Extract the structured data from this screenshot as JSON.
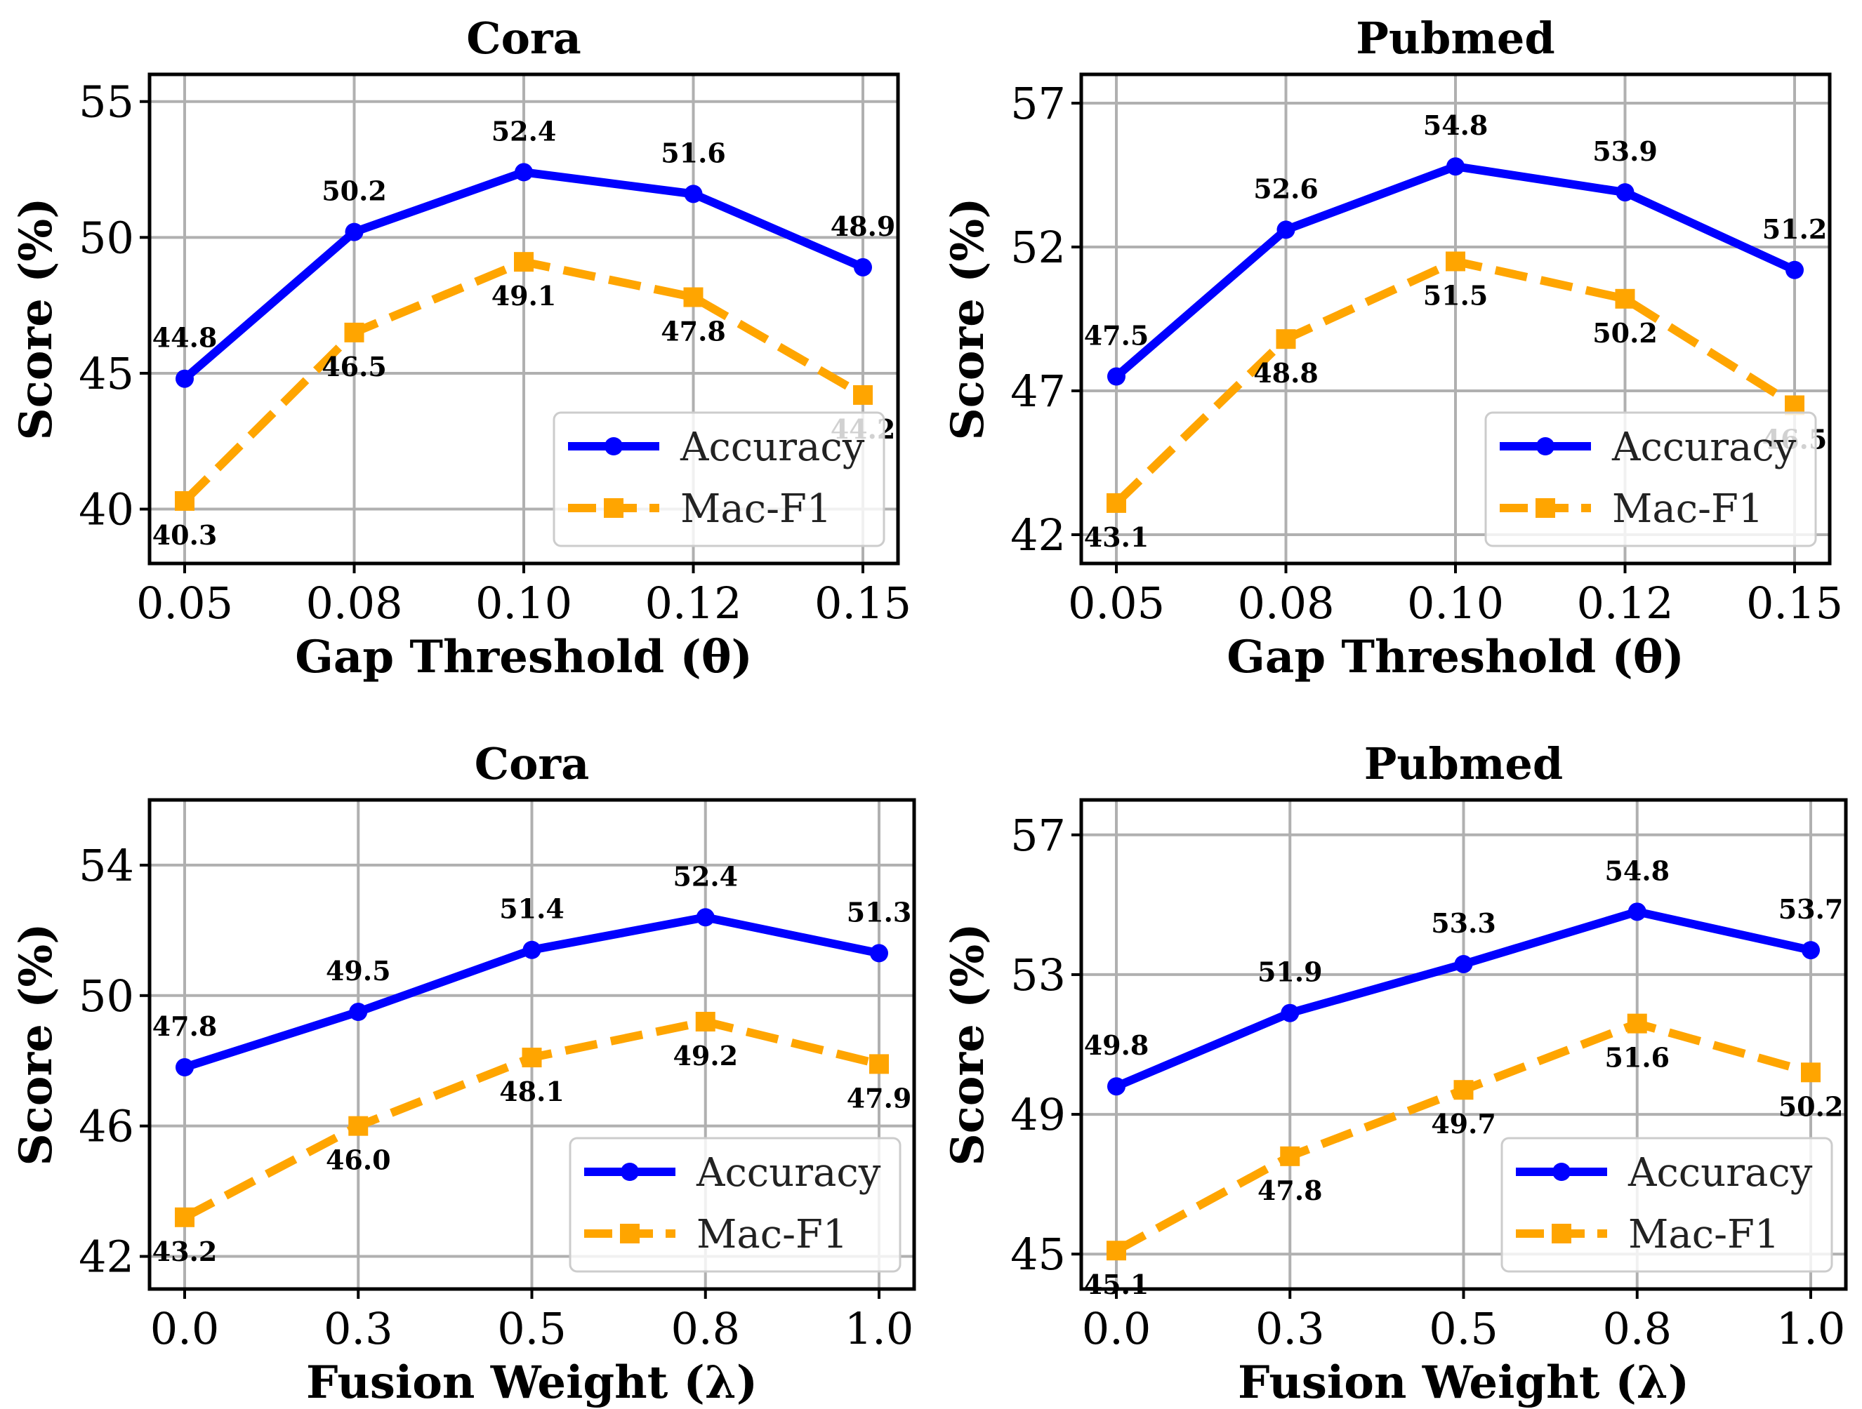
{
  "chart_data": [
    {
      "type": "line",
      "title": "Cora",
      "xlabel": "Gap Threshold (θ)",
      "ylabel": "Score (%)",
      "categories": [
        "0.05",
        "0.08",
        "0.10",
        "0.12",
        "0.15"
      ],
      "ylim": [
        38,
        56
      ],
      "yticks": [
        40,
        45,
        50,
        55
      ],
      "grid": true,
      "legend_position": "lower-right",
      "series": [
        {
          "name": "Accuracy",
          "color": "#0000ff",
          "marker": "circle",
          "style": "solid",
          "values": [
            44.8,
            50.2,
            52.4,
            51.6,
            48.9
          ],
          "labels": [
            "44.8",
            "50.2",
            "52.4",
            "51.6",
            "48.9"
          ]
        },
        {
          "name": "Mac-F1",
          "color": "#ffa500",
          "marker": "square",
          "style": "dashed",
          "values": [
            40.3,
            46.5,
            49.1,
            47.8,
            44.2
          ],
          "labels": [
            "40.3",
            "46.5",
            "49.1",
            "47.8",
            "44.2"
          ]
        }
      ]
    },
    {
      "type": "line",
      "title": "Pubmed",
      "xlabel": "Gap Threshold (θ)",
      "ylabel": "Score (%)",
      "categories": [
        "0.05",
        "0.08",
        "0.10",
        "0.12",
        "0.15"
      ],
      "ylim": [
        41,
        58
      ],
      "yticks": [
        42,
        47,
        52,
        57
      ],
      "grid": true,
      "legend_position": "lower-right",
      "series": [
        {
          "name": "Accuracy",
          "color": "#0000ff",
          "marker": "circle",
          "style": "solid",
          "values": [
            47.5,
            52.6,
            54.8,
            53.9,
            51.2
          ],
          "labels": [
            "47.5",
            "52.6",
            "54.8",
            "53.9",
            "51.2"
          ]
        },
        {
          "name": "Mac-F1",
          "color": "#ffa500",
          "marker": "square",
          "style": "dashed",
          "values": [
            43.1,
            48.8,
            51.5,
            50.2,
            46.5
          ],
          "labels": [
            "43.1",
            "48.8",
            "51.5",
            "50.2",
            "46.5"
          ]
        }
      ]
    },
    {
      "type": "line",
      "title": "Cora",
      "xlabel": "Fusion Weight (λ)",
      "ylabel": "Score (%)",
      "categories": [
        "0.0",
        "0.3",
        "0.5",
        "0.8",
        "1.0"
      ],
      "ylim": [
        41,
        56
      ],
      "yticks": [
        42,
        46,
        50,
        54
      ],
      "grid": true,
      "legend_position": "lower-right",
      "series": [
        {
          "name": "Accuracy",
          "color": "#0000ff",
          "marker": "circle",
          "style": "solid",
          "values": [
            47.8,
            49.5,
            51.4,
            52.4,
            51.3
          ],
          "labels": [
            "47.8",
            "49.5",
            "51.4",
            "52.4",
            "51.3"
          ]
        },
        {
          "name": "Mac-F1",
          "color": "#ffa500",
          "marker": "square",
          "style": "dashed",
          "values": [
            43.2,
            46.0,
            48.1,
            49.2,
            47.9
          ],
          "labels": [
            "43.2",
            "46.0",
            "48.1",
            "49.2",
            "47.9"
          ]
        }
      ]
    },
    {
      "type": "line",
      "title": "Pubmed",
      "xlabel": "Fusion Weight (λ)",
      "ylabel": "Score (%)",
      "categories": [
        "0.0",
        "0.3",
        "0.5",
        "0.8",
        "1.0"
      ],
      "ylim": [
        44,
        58
      ],
      "yticks": [
        45,
        49,
        53,
        57
      ],
      "grid": true,
      "legend_position": "lower-right",
      "series": [
        {
          "name": "Accuracy",
          "color": "#0000ff",
          "marker": "circle",
          "style": "solid",
          "values": [
            49.8,
            51.9,
            53.3,
            54.8,
            53.7
          ],
          "labels": [
            "49.8",
            "51.9",
            "53.3",
            "54.8",
            "53.7"
          ]
        },
        {
          "name": "Mac-F1",
          "color": "#ffa500",
          "marker": "square",
          "style": "dashed",
          "values": [
            45.1,
            47.8,
            49.7,
            51.6,
            50.2
          ],
          "labels": [
            "45.1",
            "47.8",
            "49.7",
            "51.6",
            "50.2"
          ]
        }
      ]
    }
  ]
}
